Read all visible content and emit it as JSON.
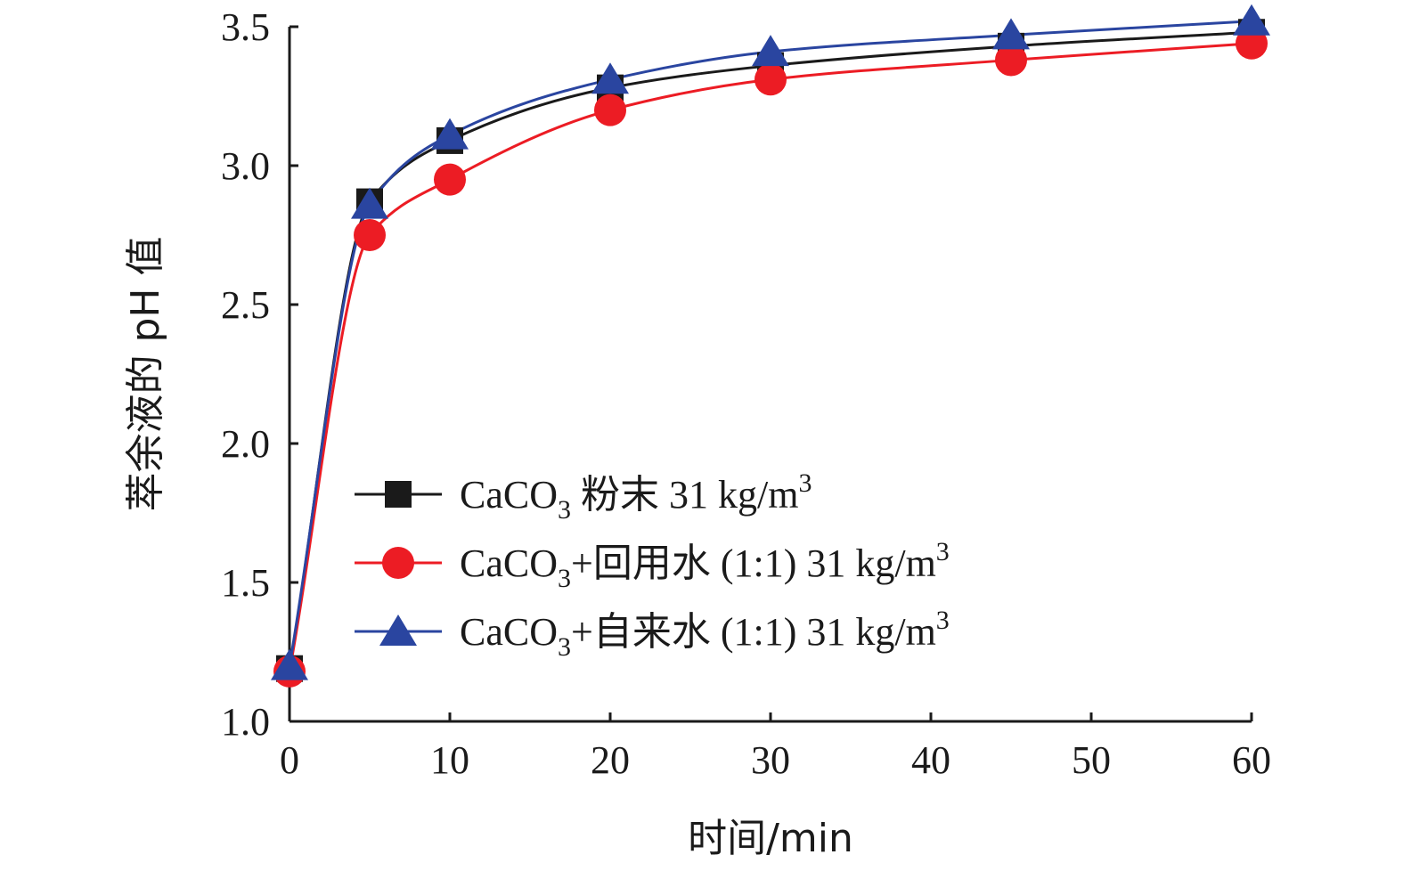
{
  "chart_data": {
    "type": "line",
    "xlabel": "时间/min",
    "ylabel": "萃余液的 pH 值",
    "xlim": [
      0,
      60
    ],
    "ylim": [
      1.0,
      3.5
    ],
    "x_ticks": [
      "0",
      "10",
      "20",
      "30",
      "40",
      "50",
      "60"
    ],
    "y_ticks": [
      "1.0",
      "1.5",
      "2.0",
      "2.5",
      "3.0",
      "3.5"
    ],
    "grid": false,
    "legend_position": "lower-right-of-center",
    "x": [
      0,
      5,
      10,
      20,
      30,
      45,
      60
    ],
    "series": [
      {
        "name": "CaCO3 粉末 31 kg/m3",
        "legend_parts": [
          "CaCO",
          "3",
          " 粉末 31 kg/m",
          "3"
        ],
        "color": "#1a1a1a",
        "marker": "square",
        "values": [
          1.19,
          2.87,
          3.09,
          3.28,
          3.36,
          3.43,
          3.48
        ]
      },
      {
        "name": "CaCO3+回用水 (1:1) 31 kg/m3",
        "legend_parts": [
          "CaCO",
          "3",
          "+回用水 (1:1) 31 kg/m",
          "3"
        ],
        "color": "#ec1c24",
        "marker": "circle",
        "values": [
          1.18,
          2.75,
          2.95,
          3.2,
          3.31,
          3.38,
          3.44
        ]
      },
      {
        "name": "CaCO3+自来水 (1:1) 31 kg/m3",
        "legend_parts": [
          "CaCO",
          "3",
          "+自来水 (1:1) 31 kg/m",
          "3"
        ],
        "color": "#2a45a0",
        "marker": "triangle",
        "values": [
          1.2,
          2.86,
          3.11,
          3.31,
          3.41,
          3.47,
          3.52
        ]
      }
    ]
  }
}
